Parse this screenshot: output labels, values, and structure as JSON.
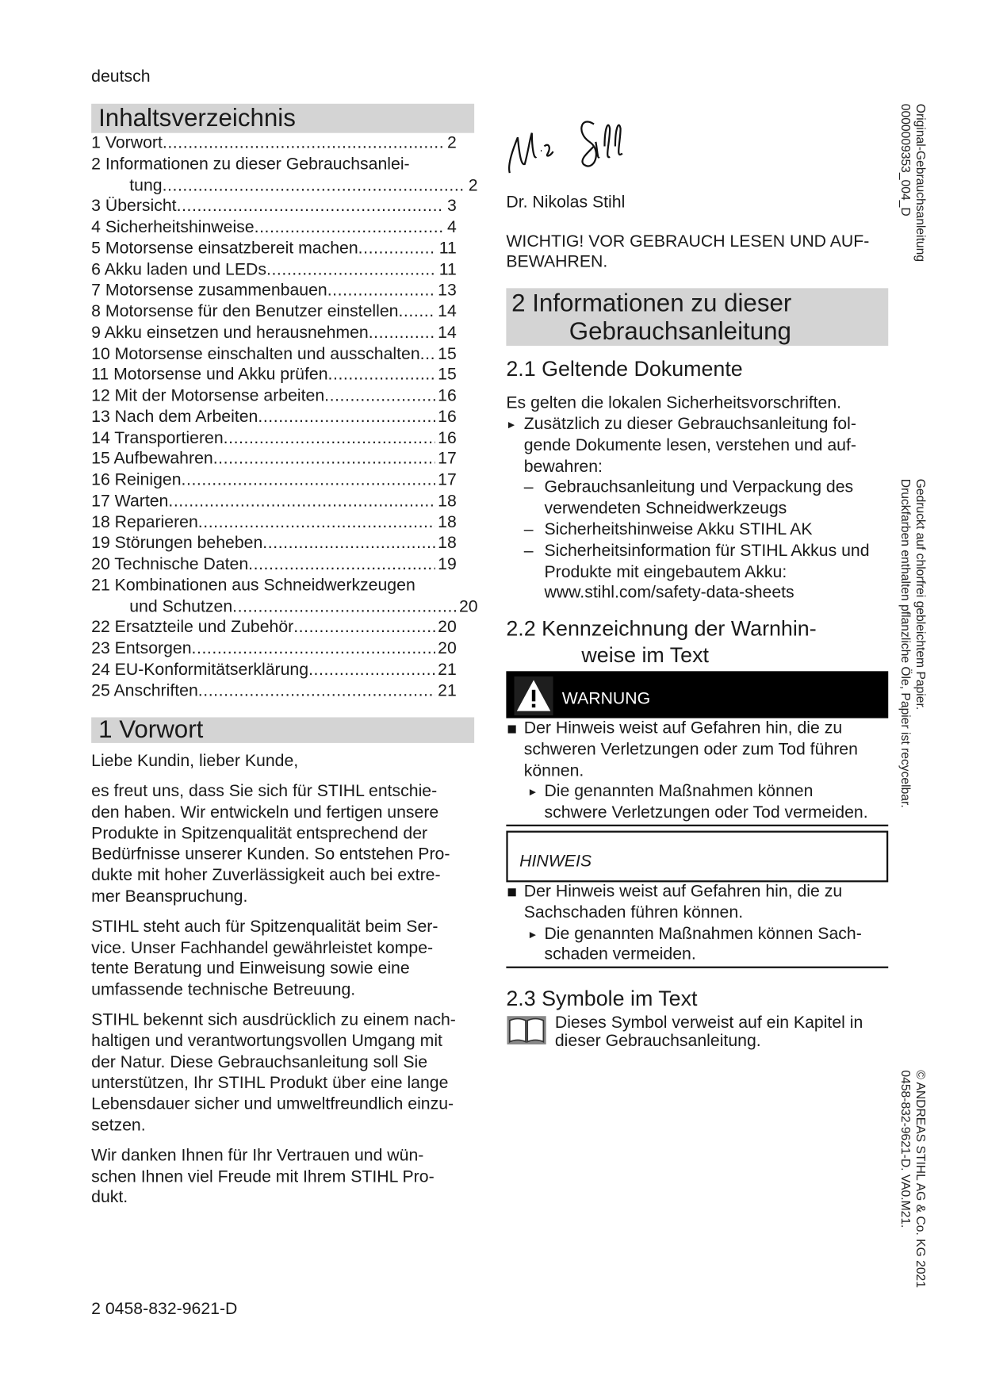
{
  "header": {
    "language": "deutsch"
  },
  "toc": {
    "title": "Inhaltsverzeichnis",
    "entries": [
      {
        "text": "1 Vorwort",
        "page": "2"
      },
      {
        "text": "2 Informationen zu dieser Gebrauchsanlei-",
        "cont": "tung",
        "page": "2"
      },
      {
        "text": "3 Übersicht",
        "page": "3"
      },
      {
        "text": "4 Sicherheitshinweise",
        "page": "4"
      },
      {
        "text": "5 Motorsense einsatzbereit machen",
        "page": "11"
      },
      {
        "text": "6 Akku laden und LEDs",
        "page": "11"
      },
      {
        "text": "7 Motorsense zusammenbauen",
        "page": "13"
      },
      {
        "text": "8 Motorsense für den Benutzer einstellen",
        "page": "14"
      },
      {
        "text": "9 Akku einsetzen und herausnehmen",
        "page": "14"
      },
      {
        "text": "10 Motorsense einschalten und ausschalten",
        "page": "15"
      },
      {
        "text": "11 Motorsense und Akku prüfen",
        "page": "15"
      },
      {
        "text": "12 Mit der Motorsense arbeiten",
        "page": "16"
      },
      {
        "text": "13 Nach dem Arbeiten",
        "page": "16"
      },
      {
        "text": "14 Transportieren",
        "page": "16"
      },
      {
        "text": "15 Aufbewahren",
        "page": "17"
      },
      {
        "text": "16 Reinigen",
        "page": "17"
      },
      {
        "text": "17 Warten",
        "page": "18"
      },
      {
        "text": "18 Reparieren",
        "page": "18"
      },
      {
        "text": "19 Störungen beheben",
        "page": "18"
      },
      {
        "text": "20 Technische Daten",
        "page": "19"
      },
      {
        "text": "21 Kombinationen aus Schneidwerkzeugen",
        "cont": "und Schutzen",
        "page": "20"
      },
      {
        "text": "22 Ersatzteile und Zubehör",
        "page": "20"
      },
      {
        "text": "23 Entsorgen",
        "page": "20"
      },
      {
        "text": "24 EU-Konformitätserklärung",
        "page": "21"
      },
      {
        "text": "25 Anschriften",
        "page": "21"
      }
    ]
  },
  "vorwort": {
    "title": "1 Vorwort",
    "greeting": "Liebe Kundin, lieber Kunde,",
    "paragraphs": [
      [
        "es freut uns, dass Sie sich für STIHL entschie-",
        "den haben. Wir entwickeln und fertigen unsere",
        "Produkte in Spitzenqualität entsprechend der",
        "Bedürfnisse unserer Kunden. So entstehen Pro-",
        "dukte mit hoher Zuverlässigkeit auch bei extre-",
        "mer Beanspruchung."
      ],
      [
        "STIHL steht auch für Spitzenqualität beim Ser-",
        "vice. Unser Fachhandel gewährleistet kompe-",
        "tente Beratung und Einweisung sowie eine",
        "umfassende technische Betreuung."
      ],
      [
        "STIHL bekennt sich ausdrücklich zu einem nach-",
        "haltigen und verantwortungsvollen Umgang mit",
        "der Natur. Diese Gebrauchsanleitung soll Sie",
        "unterstützen, Ihr STIHL Produkt über eine lange",
        "Lebensdauer sicher und umweltfreundlich einzu-",
        "setzen."
      ],
      [
        "Wir danken Ihnen für Ihr Vertrauen und wün-",
        "schen Ihnen viel Freude mit Ihrem STIHL Pro-",
        "dukt."
      ]
    ]
  },
  "signature": {
    "name": "Dr. Nikolas Stihl",
    "signature_text": "N. Stihl"
  },
  "important": [
    "WICHTIG! VOR GEBRAUCH LESEN UND AUF-",
    "BEWAHREN."
  ],
  "section2": {
    "title_lines": [
      "2 Informationen zu dieser",
      "Gebrauchsanleitung"
    ],
    "s21": {
      "title": "2.1 Geltende Dokumente",
      "intro": "Es gelten die lokalen Sicherheitsvorschriften.",
      "step": [
        "Zusätzlich zu dieser Gebrauchsanleitung fol-",
        "gende Dokumente lesen, verstehen und auf-",
        "bewahren:"
      ],
      "items": [
        [
          "Gebrauchsanleitung und Verpackung des",
          "verwendeten Schneidwerkzeugs"
        ],
        [
          "Sicherheitshinweise Akku STIHL AK"
        ],
        [
          "Sicherheitsinformation für STIHL Akkus und",
          "Produkte mit eingebautem Akku:",
          "www.stihl.com/safety-data-sheets"
        ]
      ]
    },
    "s22": {
      "title_lines": [
        "2.2 Kennzeichnung der Warnhin-",
        "weise im Text"
      ],
      "warning": {
        "label": "WARNUNG",
        "text": [
          "Der Hinweis weist auf Gefahren hin, die zu",
          "schweren Verletzungen oder zum Tod führen",
          "können."
        ],
        "action": [
          "Die genannten Maßnahmen können",
          "schwere Verletzungen oder Tod vermeiden."
        ]
      },
      "notice": {
        "label": "HINWEIS",
        "text": [
          "Der Hinweis weist auf Gefahren hin, die zu",
          "Sachschaden führen können."
        ],
        "action": [
          "Die genannten Maßnahmen können Sach-",
          "schaden vermeiden."
        ]
      }
    },
    "s23": {
      "title": "2.3 Symbole im Text",
      "book_text": [
        "Dieses Symbol verweist auf ein Kapitel in",
        "dieser Gebrauchsanleitung."
      ]
    }
  },
  "margin": {
    "original": [
      "Original-Gebrauchsanleitung",
      "0000009353_004_D"
    ],
    "paper": [
      "Gedruckt auf chlorfrei gebleichtem Papier.",
      "Druckfarben enthalten pflanzliche Öle, Papier ist recycelbar."
    ],
    "copyright": [
      "© ANDREAS STIHL AG & Co. KG 2021",
      "0458-832-9621-D. VA0.M21."
    ]
  },
  "footer": {
    "page_ref": "2 0458-832-9621-D"
  }
}
